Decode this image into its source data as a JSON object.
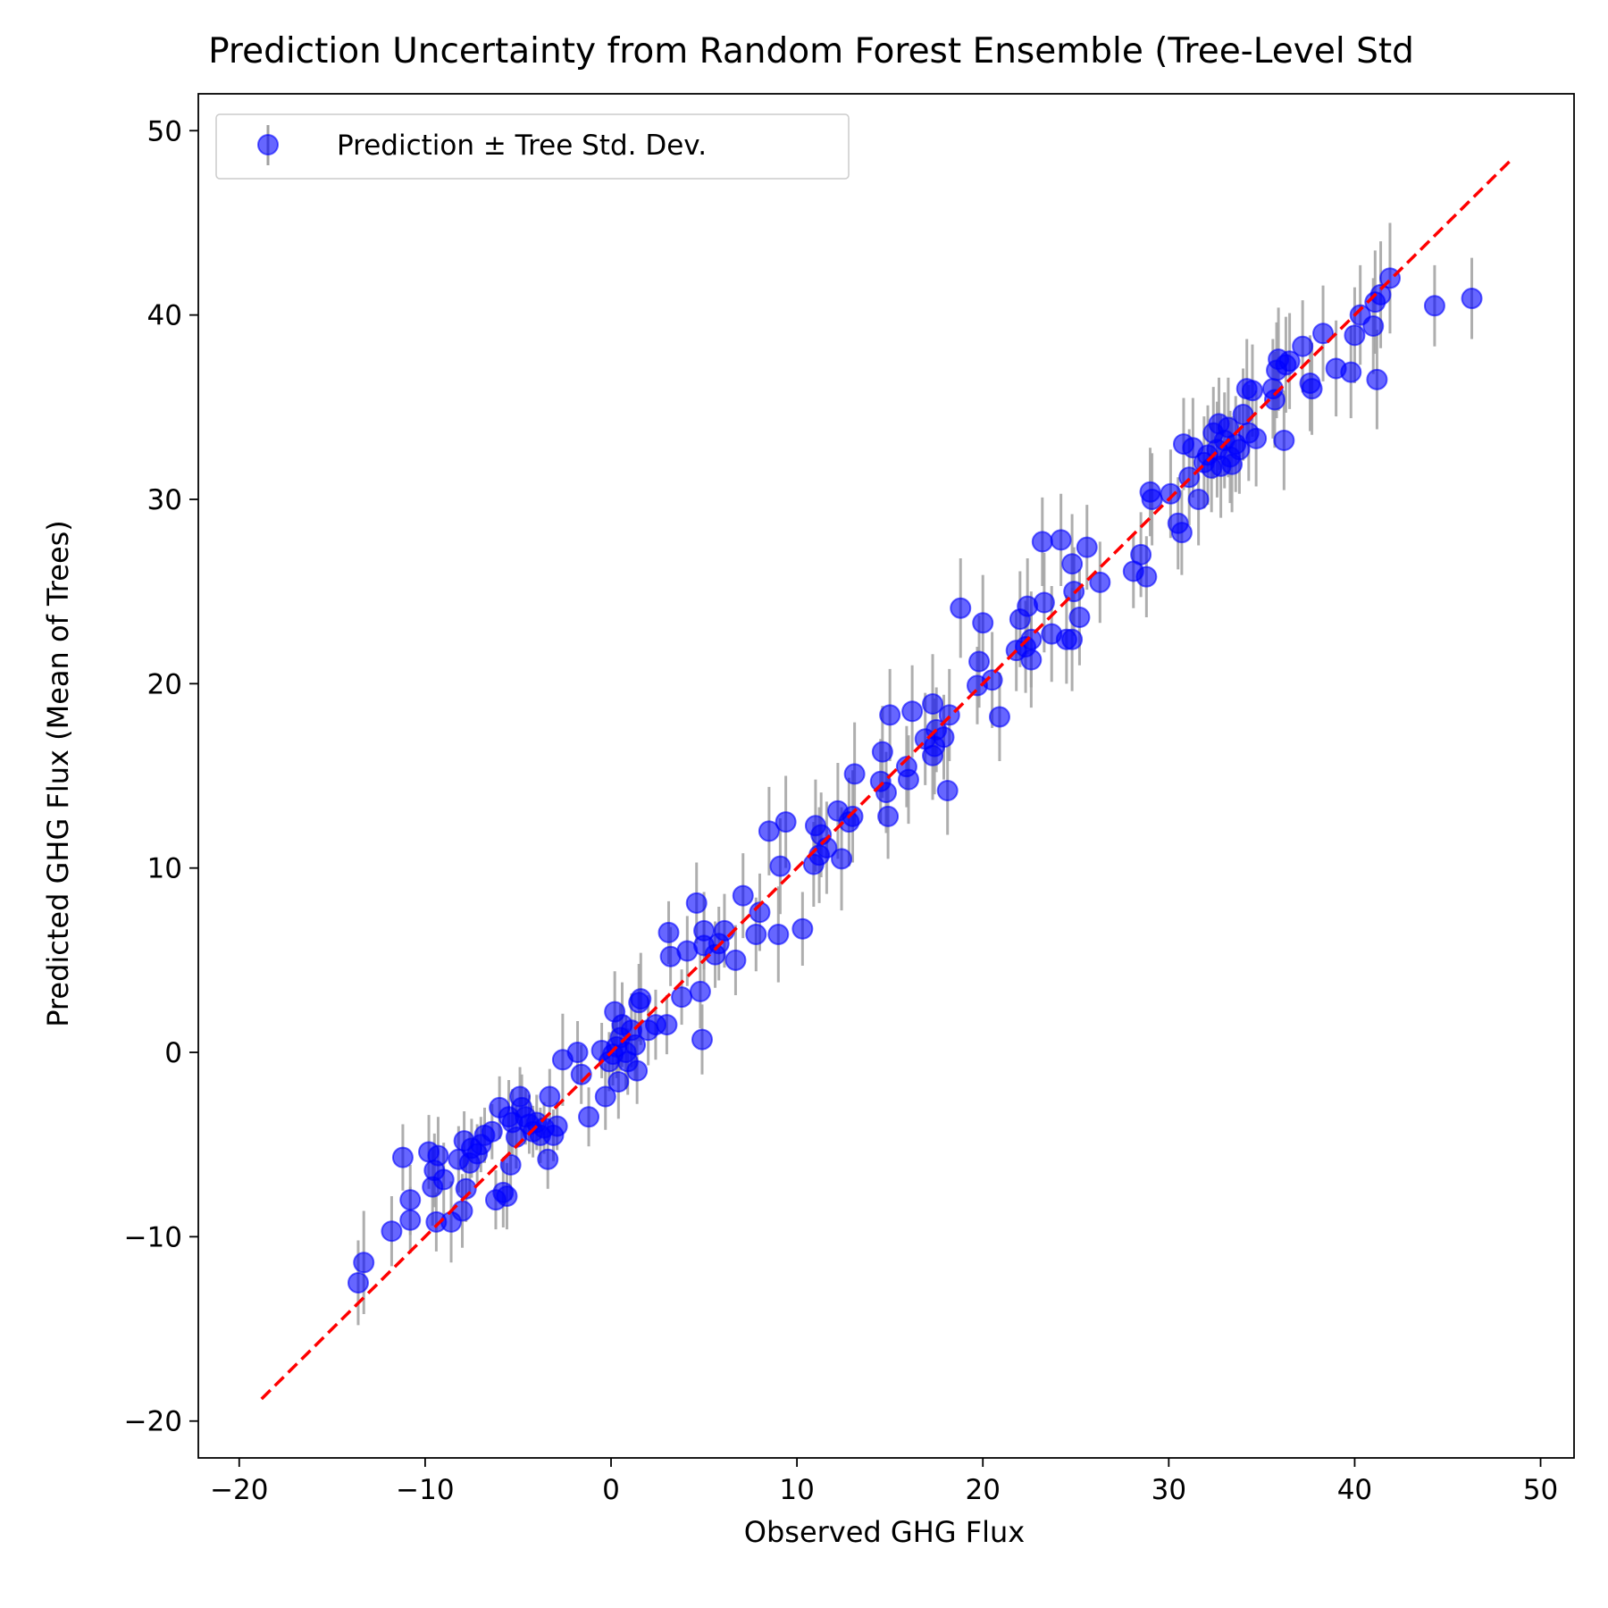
{
  "chart_data": {
    "type": "scatter",
    "title": "Prediction Uncertainty from Random Forest Ensemble (Tree-Level Std",
    "xlabel": "Observed GHG Flux",
    "ylabel": "Predicted GHG Flux (Mean of Trees)",
    "xlim": [
      -22.2,
      51.8
    ],
    "ylim": [
      -22.0,
      52.0
    ],
    "xticks": [
      -20,
      -10,
      0,
      10,
      20,
      30,
      40,
      50
    ],
    "yticks": [
      -20,
      -10,
      0,
      10,
      20,
      30,
      40,
      50
    ],
    "xtick_labels": [
      "−20",
      "−10",
      "0",
      "10",
      "20",
      "30",
      "40",
      "50"
    ],
    "ytick_labels": [
      "−20",
      "−10",
      "0",
      "10",
      "20",
      "30",
      "40",
      "50"
    ],
    "grid": false,
    "legend_position": "top-left",
    "legend_label": "Prediction ± Tree Std. Dev.",
    "reference_line": {
      "style": "dashed",
      "color": "#ff0000",
      "x": [
        -18.8,
        48.5
      ],
      "y": [
        -18.8,
        48.5
      ]
    },
    "colors": {
      "points": "#0000ff",
      "errorbars": "#a0a0a0",
      "reference": "#ff0000"
    },
    "series": [
      {
        "name": "Prediction ± Tree Std. Dev.",
        "points": [
          [
            -13.6,
            -12.5,
            2.3
          ],
          [
            -13.3,
            -11.4,
            2.8
          ],
          [
            -11.8,
            -9.7,
            1.9
          ],
          [
            -11.2,
            -5.7,
            1.8
          ],
          [
            -10.8,
            -8.0,
            1.9
          ],
          [
            -10.8,
            -9.1,
            1.8
          ],
          [
            -9.8,
            -5.4,
            2.0
          ],
          [
            -9.6,
            -7.3,
            2.1
          ],
          [
            -9.5,
            -6.4,
            2.0
          ],
          [
            -9.4,
            -9.2,
            1.6
          ],
          [
            -9.3,
            -5.6,
            2.1
          ],
          [
            -9.0,
            -6.9,
            2.0
          ],
          [
            -8.6,
            -9.2,
            2.2
          ],
          [
            -8.2,
            -5.8,
            1.8
          ],
          [
            -8.0,
            -8.6,
            2.0
          ],
          [
            -7.9,
            -4.8,
            1.6
          ],
          [
            -7.8,
            -7.4,
            1.8
          ],
          [
            -7.6,
            -6.0,
            1.7
          ],
          [
            -7.5,
            -5.2,
            1.6
          ],
          [
            -7.2,
            -5.5,
            1.6
          ],
          [
            -7.0,
            -5.0,
            1.5
          ],
          [
            -6.8,
            -4.5,
            1.5
          ],
          [
            -6.4,
            -4.3,
            1.5
          ],
          [
            -6.2,
            -8.0,
            1.6
          ],
          [
            -6.0,
            -3.0,
            1.7
          ],
          [
            -5.8,
            -7.6,
            1.9
          ],
          [
            -5.6,
            -7.8,
            1.8
          ],
          [
            -5.5,
            -3.5,
            2.0
          ],
          [
            -5.4,
            -6.1,
            1.9
          ],
          [
            -5.3,
            -3.8,
            1.8
          ],
          [
            -5.1,
            -4.6,
            1.7
          ],
          [
            -4.9,
            -2.4,
            1.6
          ],
          [
            -4.8,
            -3.0,
            1.8
          ],
          [
            -4.6,
            -3.5,
            1.5
          ],
          [
            -4.4,
            -3.9,
            1.6
          ],
          [
            -4.2,
            -4.3,
            1.4
          ],
          [
            -4.0,
            -3.8,
            1.5
          ],
          [
            -3.8,
            -4.5,
            1.5
          ],
          [
            -3.6,
            -4.1,
            1.4
          ],
          [
            -3.4,
            -5.8,
            1.6
          ],
          [
            -3.3,
            -2.4,
            1.5
          ],
          [
            -3.1,
            -4.5,
            1.4
          ],
          [
            -2.9,
            -4.0,
            1.3
          ],
          [
            -2.6,
            -0.4,
            2.5
          ],
          [
            -1.8,
            0.0,
            1.7
          ],
          [
            -1.6,
            -1.2,
            1.6
          ],
          [
            -1.2,
            -3.5,
            1.6
          ],
          [
            -0.5,
            0.1,
            1.5
          ],
          [
            -0.3,
            -2.4,
            1.8
          ],
          [
            -0.1,
            -0.5,
            1.6
          ],
          [
            0.1,
            -0.1,
            1.7
          ],
          [
            0.2,
            2.2,
            2.2
          ],
          [
            0.3,
            0.3,
            1.7
          ],
          [
            0.4,
            -1.6,
            2.0
          ],
          [
            0.5,
            0.8,
            1.8
          ],
          [
            0.6,
            1.5,
            2.3
          ],
          [
            0.8,
            0.0,
            2.0
          ],
          [
            0.9,
            -0.5,
            1.8
          ],
          [
            1.1,
            1.2,
            2.0
          ],
          [
            1.3,
            0.4,
            1.9
          ],
          [
            1.4,
            -1.0,
            1.8
          ],
          [
            1.5,
            2.7,
            2.1
          ],
          [
            1.6,
            2.9,
            2.5
          ],
          [
            2.0,
            1.2,
            1.9
          ],
          [
            2.4,
            1.5,
            1.9
          ],
          [
            3.0,
            1.5,
            1.6
          ],
          [
            3.1,
            6.5,
            1.7
          ],
          [
            3.2,
            5.2,
            1.6
          ],
          [
            3.8,
            3.0,
            1.5
          ],
          [
            4.1,
            5.5,
            1.9
          ],
          [
            4.6,
            8.1,
            2.2
          ],
          [
            4.8,
            3.3,
            2.0
          ],
          [
            4.9,
            0.7,
            1.9
          ],
          [
            5.0,
            5.8,
            2.0
          ],
          [
            5.0,
            6.6,
            2.1
          ],
          [
            5.6,
            5.3,
            1.8
          ],
          [
            5.8,
            5.9,
            2.0
          ],
          [
            6.1,
            6.6,
            2.0
          ],
          [
            6.7,
            5.0,
            1.9
          ],
          [
            7.1,
            8.5,
            2.3
          ],
          [
            7.8,
            6.4,
            2.0
          ],
          [
            8.0,
            7.6,
            2.1
          ],
          [
            8.5,
            12.0,
            2.4
          ],
          [
            9.0,
            6.4,
            2.6
          ],
          [
            9.1,
            10.1,
            2.6
          ],
          [
            9.4,
            12.5,
            2.5
          ],
          [
            10.3,
            6.7,
            2.0
          ],
          [
            10.9,
            10.2,
            2.3
          ],
          [
            11.0,
            12.3,
            2.5
          ],
          [
            11.2,
            10.7,
            2.6
          ],
          [
            11.3,
            11.8,
            2.3
          ],
          [
            11.6,
            11.1,
            2.5
          ],
          [
            12.2,
            13.1,
            2.6
          ],
          [
            12.4,
            10.5,
            2.8
          ],
          [
            12.8,
            12.5,
            2.4
          ],
          [
            13.0,
            12.8,
            2.5
          ],
          [
            13.1,
            15.1,
            2.8
          ],
          [
            14.5,
            14.7,
            2.3
          ],
          [
            14.6,
            16.3,
            2.5
          ],
          [
            14.8,
            14.1,
            2.2
          ],
          [
            14.9,
            12.8,
            2.3
          ],
          [
            15.0,
            18.3,
            2.5
          ],
          [
            15.9,
            15.5,
            2.2
          ],
          [
            16.0,
            14.8,
            2.4
          ],
          [
            16.2,
            18.5,
            2.5
          ],
          [
            16.9,
            17.0,
            2.5
          ],
          [
            17.3,
            16.1,
            2.4
          ],
          [
            17.3,
            18.9,
            2.7
          ],
          [
            17.4,
            16.6,
            2.6
          ],
          [
            17.5,
            17.5,
            2.3
          ],
          [
            17.9,
            17.1,
            2.3
          ],
          [
            18.1,
            14.2,
            2.4
          ],
          [
            18.2,
            18.3,
            2.5
          ],
          [
            18.8,
            24.1,
            2.7
          ],
          [
            19.7,
            19.9,
            2.1
          ],
          [
            19.8,
            21.2,
            2.5
          ],
          [
            20.0,
            23.3,
            2.6
          ],
          [
            20.5,
            20.2,
            2.6
          ],
          [
            20.9,
            18.2,
            2.4
          ],
          [
            21.8,
            21.8,
            2.2
          ],
          [
            22.0,
            23.5,
            2.6
          ],
          [
            22.3,
            22.0,
            2.5
          ],
          [
            22.4,
            24.2,
            2.6
          ],
          [
            22.6,
            22.4,
            2.6
          ],
          [
            22.6,
            21.3,
            2.6
          ],
          [
            23.2,
            27.7,
            2.4
          ],
          [
            23.3,
            24.4,
            2.7
          ],
          [
            23.7,
            22.7,
            2.6
          ],
          [
            24.2,
            27.8,
            2.5
          ],
          [
            24.5,
            22.4,
            2.4
          ],
          [
            24.8,
            22.4,
            2.8
          ],
          [
            24.8,
            26.5,
            2.7
          ],
          [
            24.9,
            25.0,
            2.4
          ],
          [
            25.2,
            23.6,
            2.6
          ],
          [
            25.6,
            27.4,
            2.3
          ],
          [
            26.3,
            25.5,
            2.2
          ],
          [
            28.1,
            26.1,
            2.0
          ],
          [
            28.5,
            27.0,
            2.3
          ],
          [
            28.8,
            25.8,
            2.2
          ],
          [
            29.0,
            30.4,
            2.4
          ],
          [
            29.1,
            30.0,
            2.5
          ],
          [
            30.1,
            30.3,
            2.4
          ],
          [
            30.5,
            28.7,
            2.5
          ],
          [
            30.7,
            28.2,
            2.3
          ],
          [
            30.8,
            33.0,
            2.5
          ],
          [
            31.1,
            31.2,
            2.6
          ],
          [
            31.3,
            32.8,
            2.7
          ],
          [
            31.6,
            30.0,
            2.5
          ],
          [
            31.9,
            32.0,
            2.5
          ],
          [
            32.1,
            32.4,
            2.7
          ],
          [
            32.3,
            31.7,
            2.4
          ],
          [
            32.4,
            33.6,
            2.5
          ],
          [
            32.6,
            32.7,
            2.6
          ],
          [
            32.7,
            34.1,
            2.5
          ],
          [
            32.8,
            31.8,
            2.8
          ],
          [
            33.0,
            33.2,
            2.6
          ],
          [
            33.2,
            33.9,
            2.7
          ],
          [
            33.3,
            32.3,
            2.5
          ],
          [
            33.4,
            31.9,
            2.6
          ],
          [
            33.6,
            33.0,
            2.6
          ],
          [
            33.8,
            32.7,
            2.4
          ],
          [
            34.0,
            34.6,
            2.5
          ],
          [
            34.2,
            36.0,
            2.7
          ],
          [
            34.3,
            33.6,
            2.6
          ],
          [
            34.5,
            35.9,
            2.5
          ],
          [
            34.7,
            33.3,
            2.6
          ],
          [
            35.6,
            36.0,
            2.7
          ],
          [
            35.7,
            35.4,
            2.6
          ],
          [
            35.8,
            37.0,
            2.6
          ],
          [
            35.9,
            37.6,
            2.8
          ],
          [
            36.2,
            33.2,
            2.7
          ],
          [
            36.3,
            37.3,
            2.6
          ],
          [
            36.5,
            37.5,
            2.6
          ],
          [
            37.2,
            38.3,
            2.5
          ],
          [
            37.6,
            36.3,
            2.6
          ],
          [
            37.7,
            36.0,
            2.5
          ],
          [
            38.3,
            39.0,
            2.6
          ],
          [
            39.0,
            37.1,
            2.6
          ],
          [
            39.8,
            36.9,
            2.5
          ],
          [
            40.0,
            38.9,
            2.6
          ],
          [
            40.3,
            40.0,
            2.7
          ],
          [
            41.0,
            39.4,
            2.6
          ],
          [
            41.1,
            40.7,
            2.8
          ],
          [
            41.2,
            36.5,
            2.7
          ],
          [
            41.4,
            41.1,
            2.9
          ],
          [
            41.9,
            42.0,
            3.0
          ],
          [
            44.3,
            40.5,
            2.2
          ],
          [
            46.3,
            40.9,
            2.2
          ]
        ]
      }
    ]
  }
}
